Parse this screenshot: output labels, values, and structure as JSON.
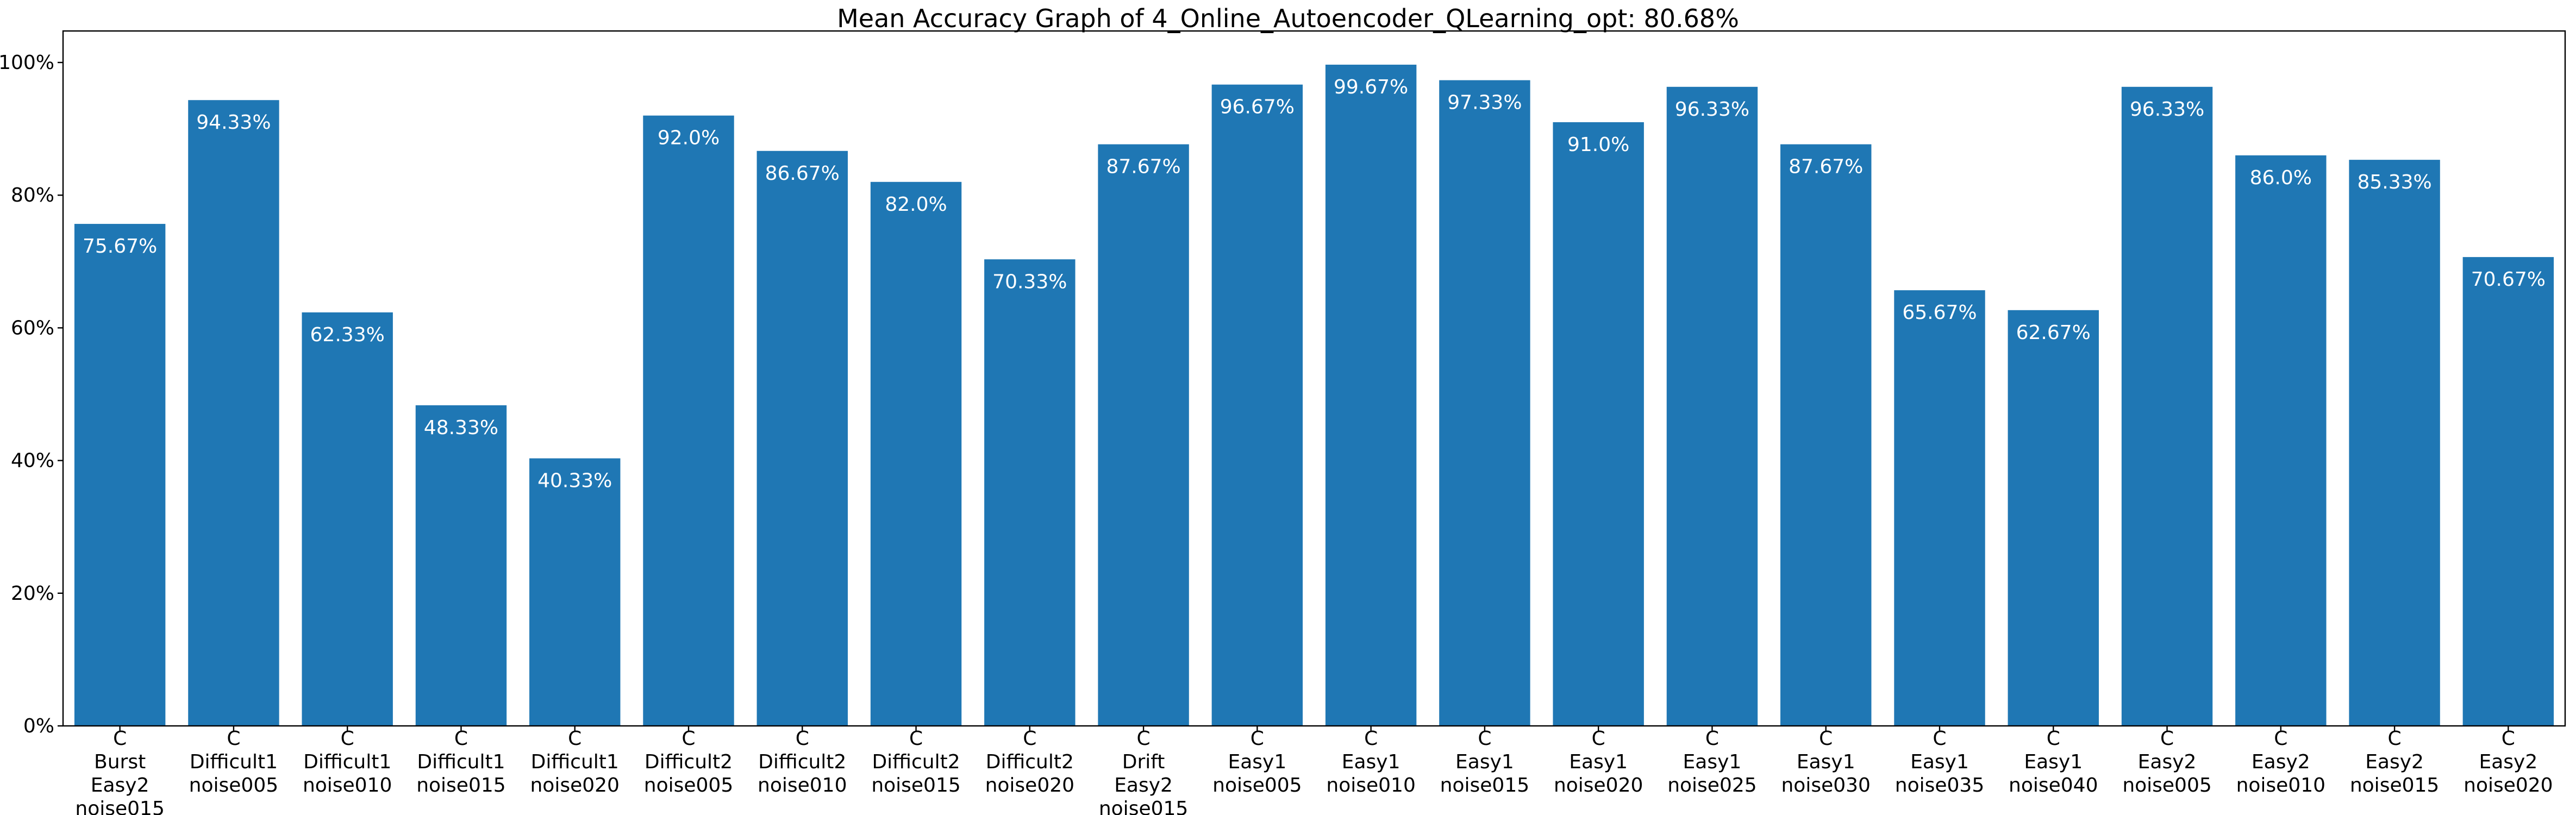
{
  "chart_data": {
    "type": "bar",
    "title": "Mean Accuracy Graph of 4_Online_Autoencoder_QLearning_opt: 80.68%",
    "xlabel": "",
    "ylabel": "",
    "ylim": [
      0,
      100
    ],
    "y_ticks": [
      0,
      20,
      40,
      60,
      80,
      100
    ],
    "y_tick_labels": [
      "0%",
      "20%",
      "40%",
      "60%",
      "80%",
      "100%"
    ],
    "grid": false,
    "bar_color": "#1f77b4",
    "label_color": "#ffffff",
    "categories": [
      [
        "C",
        "Burst",
        "Easy2",
        "noise015"
      ],
      [
        "C",
        "Difficult1",
        "noise005"
      ],
      [
        "C",
        "Difficult1",
        "noise010"
      ],
      [
        "C",
        "Difficult1",
        "noise015"
      ],
      [
        "C",
        "Difficult1",
        "noise020"
      ],
      [
        "C",
        "Difficult2",
        "noise005"
      ],
      [
        "C",
        "Difficult2",
        "noise010"
      ],
      [
        "C",
        "Difficult2",
        "noise015"
      ],
      [
        "C",
        "Difficult2",
        "noise020"
      ],
      [
        "C",
        "Drift",
        "Easy2",
        "noise015"
      ],
      [
        "C",
        "Easy1",
        "noise005"
      ],
      [
        "C",
        "Easy1",
        "noise010"
      ],
      [
        "C",
        "Easy1",
        "noise015"
      ],
      [
        "C",
        "Easy1",
        "noise020"
      ],
      [
        "C",
        "Easy1",
        "noise025"
      ],
      [
        "C",
        "Easy1",
        "noise030"
      ],
      [
        "C",
        "Easy1",
        "noise035"
      ],
      [
        "C",
        "Easy1",
        "noise040"
      ],
      [
        "C",
        "Easy2",
        "noise005"
      ],
      [
        "C",
        "Easy2",
        "noise010"
      ],
      [
        "C",
        "Easy2",
        "noise015"
      ],
      [
        "C",
        "Easy2",
        "noise020"
      ]
    ],
    "values": [
      75.67,
      94.33,
      62.33,
      48.33,
      40.33,
      92.0,
      86.67,
      82.0,
      70.33,
      87.67,
      96.67,
      99.67,
      97.33,
      91.0,
      96.33,
      87.67,
      65.67,
      62.67,
      96.33,
      86.0,
      85.33,
      70.67
    ],
    "value_labels": [
      "75.67%",
      "94.33%",
      "62.33%",
      "48.33%",
      "40.33%",
      "92.0%",
      "86.67%",
      "82.0%",
      "70.33%",
      "87.67%",
      "96.67%",
      "99.67%",
      "97.33%",
      "91.0%",
      "96.33%",
      "87.67%",
      "65.67%",
      "62.67%",
      "96.33%",
      "86.0%",
      "85.33%",
      "70.67%"
    ]
  }
}
